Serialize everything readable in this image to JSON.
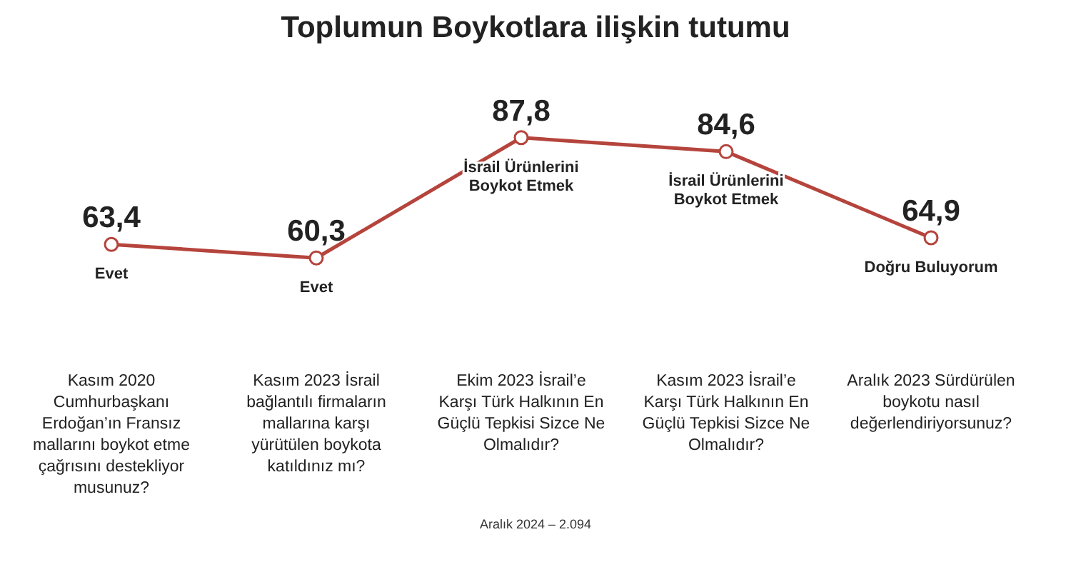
{
  "chart_data": {
    "type": "line",
    "title": "Toplumun Boykotlara ilişkin tutumu",
    "categories": [
      "Kasım 2020 Cumhurbaşkanı Erdoğan’ın Fransız mallarını boykot etme çağrısını destekliyor musunuz?",
      "Kasım 2023 İsrail bağlantılı firmaların mallarına karşı yürütülen boykota katıldınız mı?",
      "Ekim 2023 İsrail’e Karşı Türk Halkının En Güçlü Tepkisi Sizce Ne Olmalıdır?",
      "Kasım 2023 İsrail’e Karşı Türk Halkının En Güçlü Tepkisi Sizce Ne Olmalıdır?",
      "Aralık 2023 Sürdürülen boykotu nasıl değerlendiriyorsunuz?"
    ],
    "series": [
      {
        "color": "#b5443c",
        "values": [
          63.4,
          60.3,
          87.8,
          84.6,
          64.9
        ],
        "value_labels": [
          "63,4",
          "60,3",
          "87,8",
          "84,6",
          "64,9"
        ]
      }
    ],
    "marker": "circle",
    "line_style": "solid",
    "tick_labels": "x",
    "annotations": [
      {
        "text": "Evet",
        "x": "Kasım 2020 Cumhurbaşkanı Erdoğan’ın Fransız mallarını boykot etme çağrısını destekliyor musunuz?",
        "y": 63.4
      },
      {
        "text": "Evet",
        "x": "Kasım 2023 İsrail bağlantılı firmaların mallarına karşı yürütülen boykota katıldınız mı?",
        "y": 60.3
      },
      {
        "text": "İsrail Ürünlerini Boykot Etmek",
        "x": "Ekim 2023 İsrail’e Karşı Türk Halkının En Güçlü Tepkisi Sizce Ne Olmalıdır?",
        "y": 87.8
      },
      {
        "text": "İsrail Ürünlerini Boykot Etmek",
        "x": "Kasım 2023 İsrail’e Karşı Türk Halkının En Güçlü Tepkisi Sizce Ne Olmalıdır?",
        "y": 84.6
      },
      {
        "text": "Doğru Buluyorum",
        "x": "Aralık 2023 Sürdürülen boykotu nasıl değerlendiriyorsunuz?",
        "y": 64.9
      },
      "Aralık 2024 – 2.094"
    ]
  }
}
